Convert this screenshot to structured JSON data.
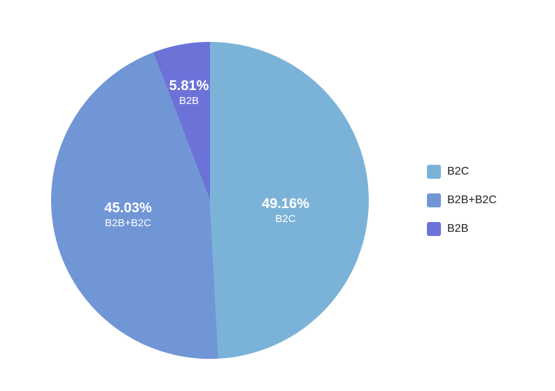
{
  "chart_data": {
    "type": "pie",
    "title": "",
    "slices": [
      {
        "label": "B2C",
        "value": 49.16,
        "display": "49.16%",
        "color": "#7bb3d8"
      },
      {
        "label": "B2B+B2C",
        "value": 45.03,
        "display": "45.03%",
        "color": "#7196d6"
      },
      {
        "label": "B2B",
        "value": 5.81,
        "display": "5.81%",
        "color": "#6c72d8"
      }
    ],
    "start_angle_deg": 0,
    "direction": "clockwise",
    "legend": {
      "position": "right",
      "entries": [
        "B2C",
        "B2B+B2C",
        "B2B"
      ]
    }
  }
}
